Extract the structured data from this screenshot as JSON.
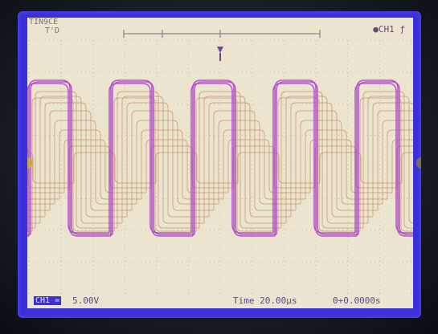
{
  "top": {
    "mode": "TIN9CE",
    "status": "T'D",
    "trigger_marker": "T",
    "trigger_source": "CH1 ƒ"
  },
  "bottom": {
    "channel": "CH1",
    "volts_div": "5.00V",
    "time_div": "Time 20.00μs",
    "time_offset": "0+0.0000s"
  },
  "colors": {
    "screen_border": "#3b2fd8",
    "display_bg": "#ebe5cf",
    "trace_main": "#b04ac8",
    "trace_ghost": "#c8946c",
    "grid": "#c9b6a0"
  }
}
